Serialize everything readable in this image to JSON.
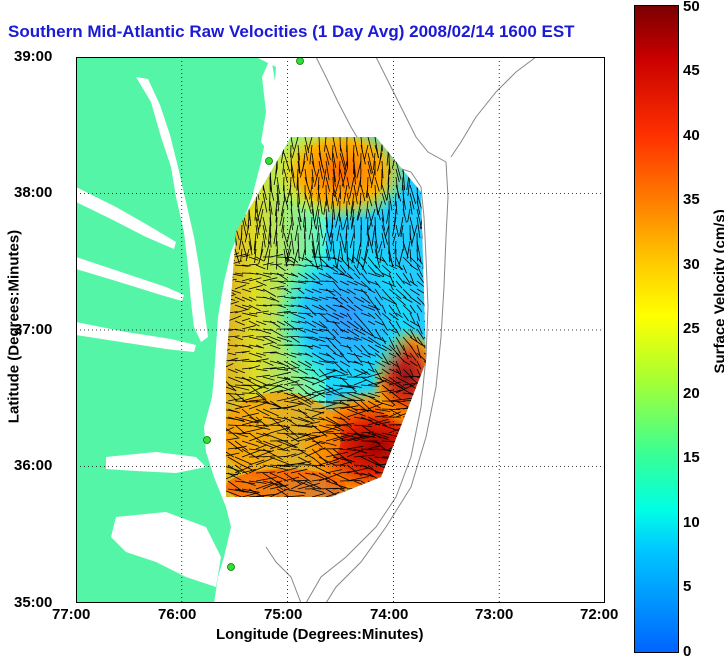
{
  "title": "Southern Mid-Atlantic Raw Velocities (1 Day Avg) 2008/02/14 1600 EST",
  "map": {
    "x_axis": {
      "label": "Longitude (Degrees:Minutes)",
      "ticks": [
        "77:00",
        "76:00",
        "75:00",
        "74:00",
        "73:00",
        "72:00"
      ],
      "range": [
        -77,
        -72
      ]
    },
    "y_axis": {
      "label": "Latitude (Degrees:Minutes)",
      "ticks": [
        "39:00",
        "38:00",
        "37:00",
        "36:00",
        "35:00"
      ],
      "range": [
        35,
        39
      ]
    },
    "grid": "dotted",
    "land_color": "#55f5a8",
    "bathymetry_color": "#888888",
    "station_color": "#33dd33",
    "stations": [
      {
        "lon": -74.75,
        "lat": 38.97
      },
      {
        "lon": -75.08,
        "lat": 38.23
      },
      {
        "lon": -75.7,
        "lat": 36.18
      },
      {
        "lon": -75.48,
        "lat": 35.27
      }
    ]
  },
  "colorbar": {
    "label": "Surface Velocity (cm/s)",
    "ticks": [
      "0",
      "5",
      "10",
      "15",
      "20",
      "25",
      "30",
      "35",
      "40",
      "45",
      "50"
    ],
    "range": [
      0,
      50
    ],
    "colors": [
      "#0064ff",
      "#00c8ff",
      "#00ffe6",
      "#33ff99",
      "#a6ff33",
      "#ffff00",
      "#ffcc00",
      "#ff8c00",
      "#ff3000",
      "#c80000",
      "#7a0000"
    ]
  }
}
